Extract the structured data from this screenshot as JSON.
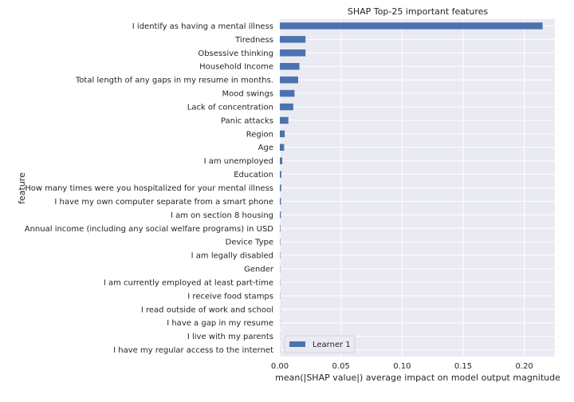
{
  "chart_data": {
    "type": "bar",
    "orientation": "horizontal",
    "title": "SHAP Top-25 important features",
    "xlabel": "mean(|SHAP value|) average impact on model output magnitude",
    "ylabel": "feature",
    "xlim": [
      0.0,
      0.225
    ],
    "xticks": [
      0.0,
      0.05,
      0.1,
      0.15,
      0.2
    ],
    "xtick_labels": [
      "0.00",
      "0.05",
      "0.10",
      "0.15",
      "0.20"
    ],
    "grid": true,
    "legend_position": "lower-left",
    "categories": [
      "I identify as having a mental illness",
      "Tiredness",
      "Obsessive thinking",
      "Household Income",
      "Total length of any gaps in my resume in months.",
      "Mood swings",
      "Lack of concentration",
      "Panic attacks",
      "Region",
      "Age",
      "I am unemployed",
      "Education",
      "How many times were you hospitalized for your mental illness",
      "I have my own computer separate from a smart phone",
      "I am on section 8 housing",
      "Annual income (including any social welfare programs) in USD",
      "Device Type",
      "I am legally disabled",
      "Gender",
      "I am currently employed at least part-time",
      "I receive food stamps",
      "I read outside of work and school",
      "I have a gap in my resume",
      "I live with my parents",
      "I have my regular access to the internet"
    ],
    "series": [
      {
        "name": "Learner 1",
        "color": "#4c72b0",
        "values": [
          0.215,
          0.021,
          0.021,
          0.016,
          0.015,
          0.012,
          0.011,
          0.007,
          0.004,
          0.0035,
          0.002,
          0.0012,
          0.0011,
          0.0009,
          0.0008,
          0.0004,
          0.0003,
          0.0003,
          0.0002,
          0.0002,
          0.0002,
          0.0001,
          0.0001,
          0.0001,
          0.0001
        ]
      }
    ],
    "colors": {
      "plot_background": "#eaeaf2",
      "grid": "#ffffff",
      "bar": "#4c72b0"
    }
  }
}
